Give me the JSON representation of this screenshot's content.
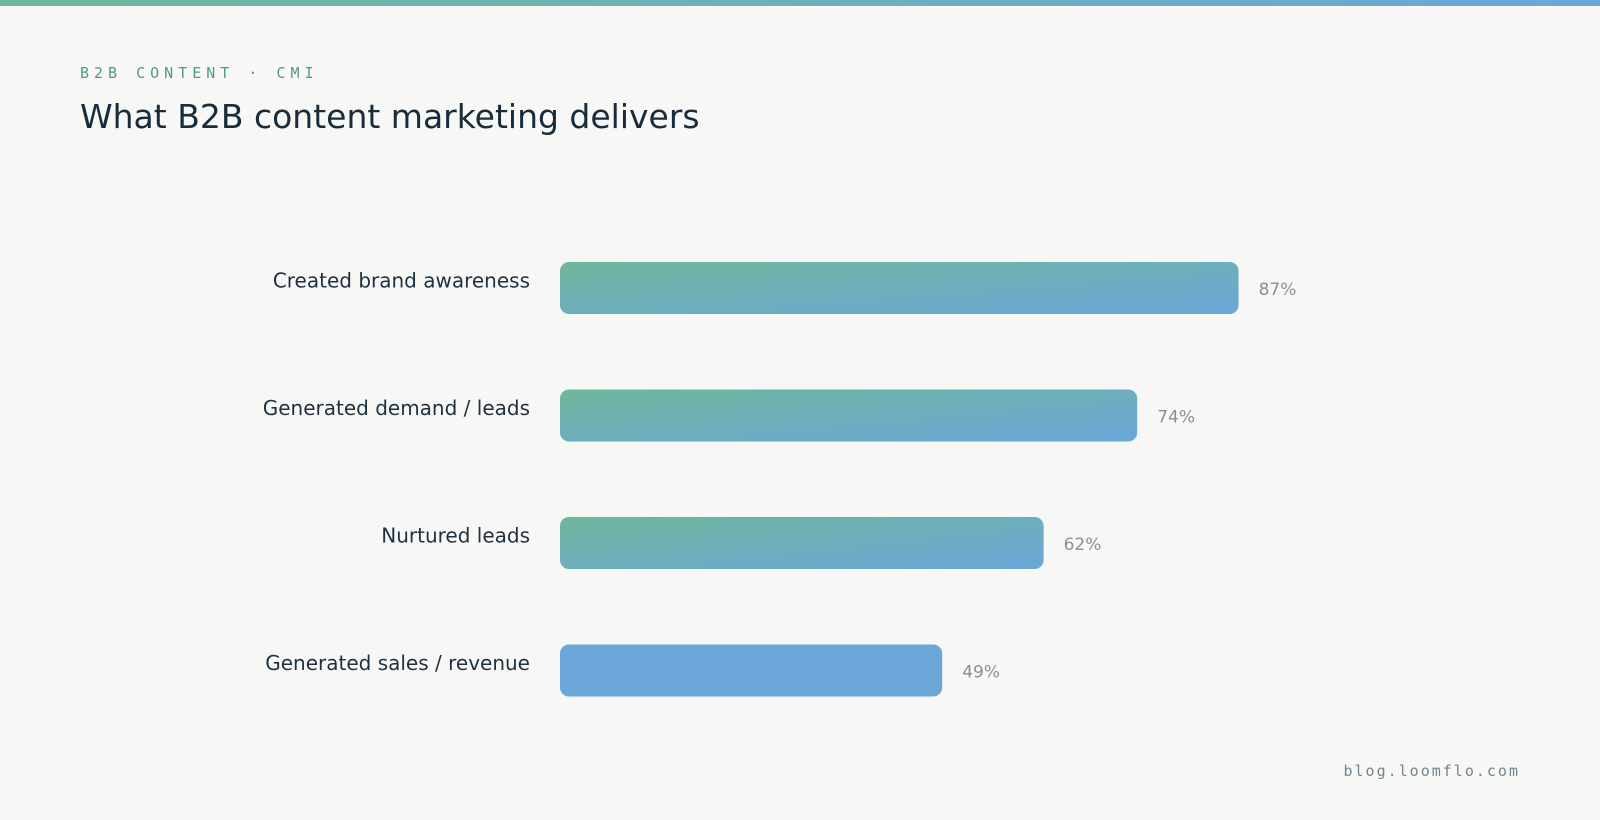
{
  "chart_data": {
    "type": "hbar",
    "subtitle": "B2B CONTENT · CMI",
    "title": "What B2B content marketing delivers",
    "categories": [
      "Created brand awareness",
      "Generated demand / leads",
      "Nurtured leads",
      "Generated sales / revenue"
    ],
    "values": [
      87,
      74,
      62,
      49
    ],
    "value_labels": [
      "87%",
      "74%",
      "62%",
      "49%"
    ],
    "bar_colors": [
      [
        "#6fb69c",
        "#6ca7da"
      ],
      [
        "#6fb69c",
        "#6ca7da"
      ],
      [
        "#6fb69c",
        "#6ca7da"
      ],
      [
        "#6ca7da",
        "#6ca7da"
      ]
    ],
    "source": "blog.loomflo.com"
  }
}
